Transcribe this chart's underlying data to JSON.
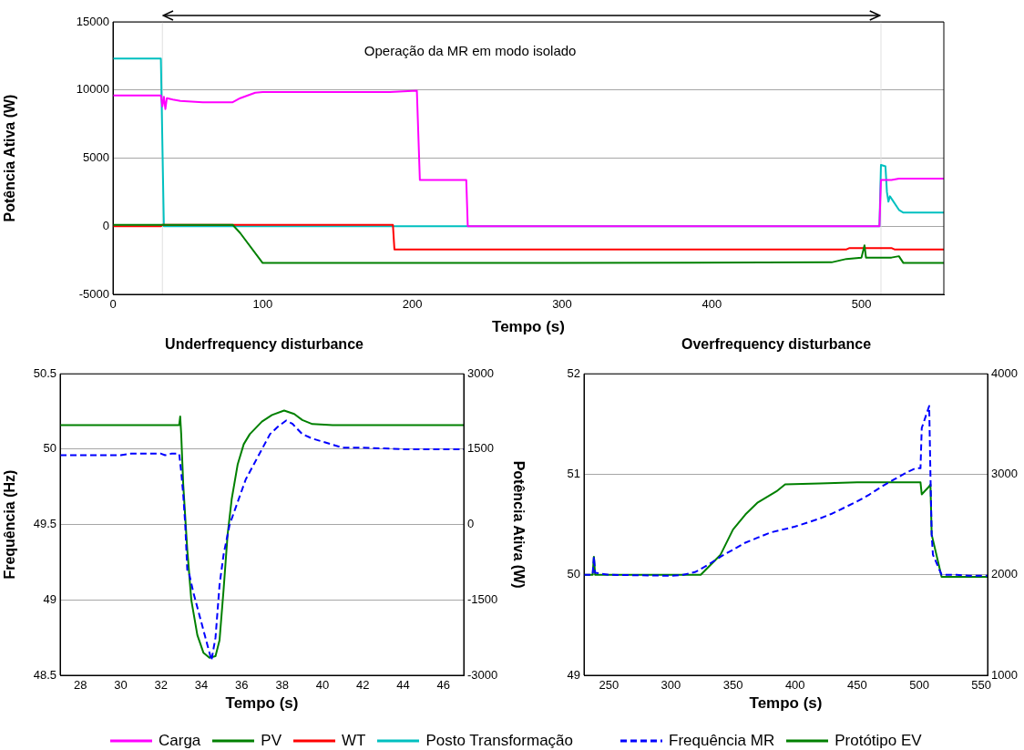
{
  "chart_data": [
    {
      "type": "line",
      "xlabel": "Tempo (s)",
      "ylabel": "Potência Ativa (W)",
      "xlim": [
        0,
        555
      ],
      "xticks": [
        0,
        100,
        200,
        300,
        400,
        500
      ],
      "ylim": [
        -5000,
        15000
      ],
      "yticks": [
        -5000,
        0,
        5000,
        10000,
        15000
      ],
      "grid": "y",
      "legend": "bottom",
      "annotations": [
        "Operação da MR em modo isolado"
      ],
      "ref_lines": [
        {
          "axis": "x",
          "value": 33,
          "color": "#e0e0e0"
        },
        {
          "axis": "x",
          "value": 513,
          "color": "#e0e0e0"
        }
      ],
      "series": [
        {
          "name": "Carga",
          "color": "#ff00ff",
          "x": [
            0,
            32,
            33,
            34,
            35,
            36,
            40,
            45,
            60,
            80,
            85,
            95,
            100,
            185,
            203,
            205,
            236,
            237,
            512,
            513,
            520,
            525,
            555
          ],
          "values": [
            9600,
            9600,
            8800,
            9500,
            8600,
            9400,
            9300,
            9200,
            9100,
            9100,
            9400,
            9800,
            9850,
            9850,
            9950,
            3400,
            3400,
            0,
            0,
            3400,
            3400,
            3500,
            3500
          ]
        },
        {
          "name": "PV",
          "color": "#008000",
          "x": [
            0,
            80,
            85,
            100,
            150,
            300,
            480,
            490,
            500,
            502,
            503,
            520,
            525,
            528,
            555
          ],
          "values": [
            100,
            100,
            -500,
            -2700,
            -2700,
            -2700,
            -2650,
            -2400,
            -2300,
            -1400,
            -2300,
            -2300,
            -2200,
            -2700,
            -2700
          ]
        },
        {
          "name": "WT",
          "color": "#ff0000",
          "x": [
            0,
            32,
            33,
            187,
            188,
            490,
            492,
            520,
            522,
            555
          ],
          "values": [
            0,
            0,
            100,
            100,
            -1700,
            -1700,
            -1600,
            -1600,
            -1700,
            -1700
          ]
        },
        {
          "name": "Posto Transformação",
          "color": "#00c0c0",
          "x": [
            0,
            32,
            34,
            512,
            513,
            516,
            517,
            518,
            519,
            525,
            528,
            555
          ],
          "values": [
            12300,
            12300,
            0,
            0,
            4500,
            4400,
            2500,
            1800,
            2200,
            1200,
            1000,
            1000
          ]
        }
      ]
    },
    {
      "type": "line",
      "title": "Underfrequency disturbance",
      "xlabel": "Tempo (s)",
      "ylabel": "Frequência (Hz)",
      "y2label": "Potência Ativa (W)",
      "xlim": [
        27,
        47
      ],
      "xticks": [
        28,
        30,
        32,
        34,
        36,
        38,
        40,
        42,
        44,
        46
      ],
      "ylim": [
        48.5,
        50.5
      ],
      "yticks": [
        48.5,
        49,
        49.5,
        50,
        50.5
      ],
      "y2lim": [
        -3000,
        3000
      ],
      "y2ticks": [
        -3000,
        -1500,
        0,
        1500,
        3000
      ],
      "grid": "y",
      "series": [
        {
          "color": "#0000ff",
          "line_style": "dashed",
          "x": [
            27,
            30,
            30.5,
            32,
            32.2,
            32.5,
            32.9,
            33.0,
            33.1,
            33.2,
            33.3,
            33.4,
            33.6,
            34,
            34.3,
            34.5,
            34.7,
            34.9,
            35.1,
            35.4,
            35.8,
            36.2,
            36.6,
            37,
            37.4,
            37.8,
            38.2,
            38.5,
            39,
            39.5,
            40,
            41,
            42,
            44,
            47
          ],
          "values": [
            49.96,
            49.96,
            49.97,
            49.97,
            49.96,
            49.97,
            49.97,
            49.85,
            49.7,
            49.5,
            49.2,
            49.17,
            49.05,
            48.85,
            48.7,
            48.6,
            48.75,
            49.1,
            49.3,
            49.5,
            49.65,
            49.8,
            49.9,
            50.0,
            50.1,
            50.15,
            50.19,
            50.17,
            50.1,
            50.07,
            50.05,
            50.01,
            50.01,
            50.0,
            50.0
          ]
        },
        {
          "color": "#008000",
          "axis": "y2",
          "x": [
            27,
            32.9,
            32.95,
            33.0,
            33.1,
            33.3,
            33.5,
            33.8,
            34.1,
            34.4,
            34.7,
            34.9,
            35.1,
            35.3,
            35.5,
            35.8,
            36.1,
            36.4,
            37,
            37.5,
            38.1,
            38.6,
            39,
            39.5,
            40.5,
            47
          ],
          "values": [
            1980,
            1980,
            2150,
            1800,
            800,
            -500,
            -1500,
            -2200,
            -2550,
            -2650,
            -2620,
            -2300,
            -1300,
            -200,
            500,
            1200,
            1600,
            1800,
            2050,
            2180,
            2270,
            2200,
            2080,
            2000,
            1980,
            1980
          ]
        }
      ]
    },
    {
      "type": "line",
      "title": "Overfrequency disturbance",
      "xlabel": "Tempo (s)",
      "xlim": [
        230,
        555
      ],
      "xticks": [
        250,
        300,
        350,
        400,
        450,
        500,
        550
      ],
      "ylim": [
        49,
        52
      ],
      "yticks": [
        49,
        50,
        51,
        52
      ],
      "y2lim": [
        1000,
        4000
      ],
      "y2ticks": [
        1000,
        2000,
        3000,
        4000
      ],
      "grid": "y",
      "legend": "bottom",
      "series": [
        {
          "name": "Frequência MR",
          "color": "#0000ff",
          "line_style": "dashed",
          "x": [
            230,
            237,
            238,
            239,
            250,
            300,
            310,
            320,
            330,
            340,
            350,
            360,
            370,
            380,
            390,
            400,
            410,
            420,
            430,
            440,
            450,
            460,
            470,
            480,
            490,
            497,
            501,
            502,
            508,
            509,
            510,
            511,
            518,
            530,
            540,
            555
          ],
          "values": [
            50.0,
            50.0,
            50.18,
            50.02,
            50.0,
            49.99,
            50.0,
            50.03,
            50.1,
            50.18,
            50.25,
            50.32,
            50.37,
            50.42,
            50.45,
            50.48,
            50.52,
            50.56,
            50.61,
            50.67,
            50.73,
            50.8,
            50.88,
            50.95,
            51.02,
            51.06,
            51.06,
            51.46,
            51.68,
            51.0,
            50.4,
            50.2,
            50.0,
            50.0,
            49.99,
            49.99
          ]
        },
        {
          "name": "Protótipo EV",
          "color": "#008000",
          "axis": "y2",
          "x": [
            230,
            237,
            238,
            239,
            250,
            324,
            340,
            350,
            360,
            370,
            385,
            392,
            420,
            450,
            480,
            501,
            502,
            508,
            509,
            510,
            518,
            530,
            555
          ],
          "values": [
            2000,
            2000,
            2180,
            2000,
            2000,
            2000,
            2200,
            2450,
            2600,
            2720,
            2830,
            2900,
            2910,
            2920,
            2920,
            2920,
            2800,
            2880,
            2900,
            2400,
            1980,
            1980,
            1980
          ]
        }
      ]
    }
  ]
}
